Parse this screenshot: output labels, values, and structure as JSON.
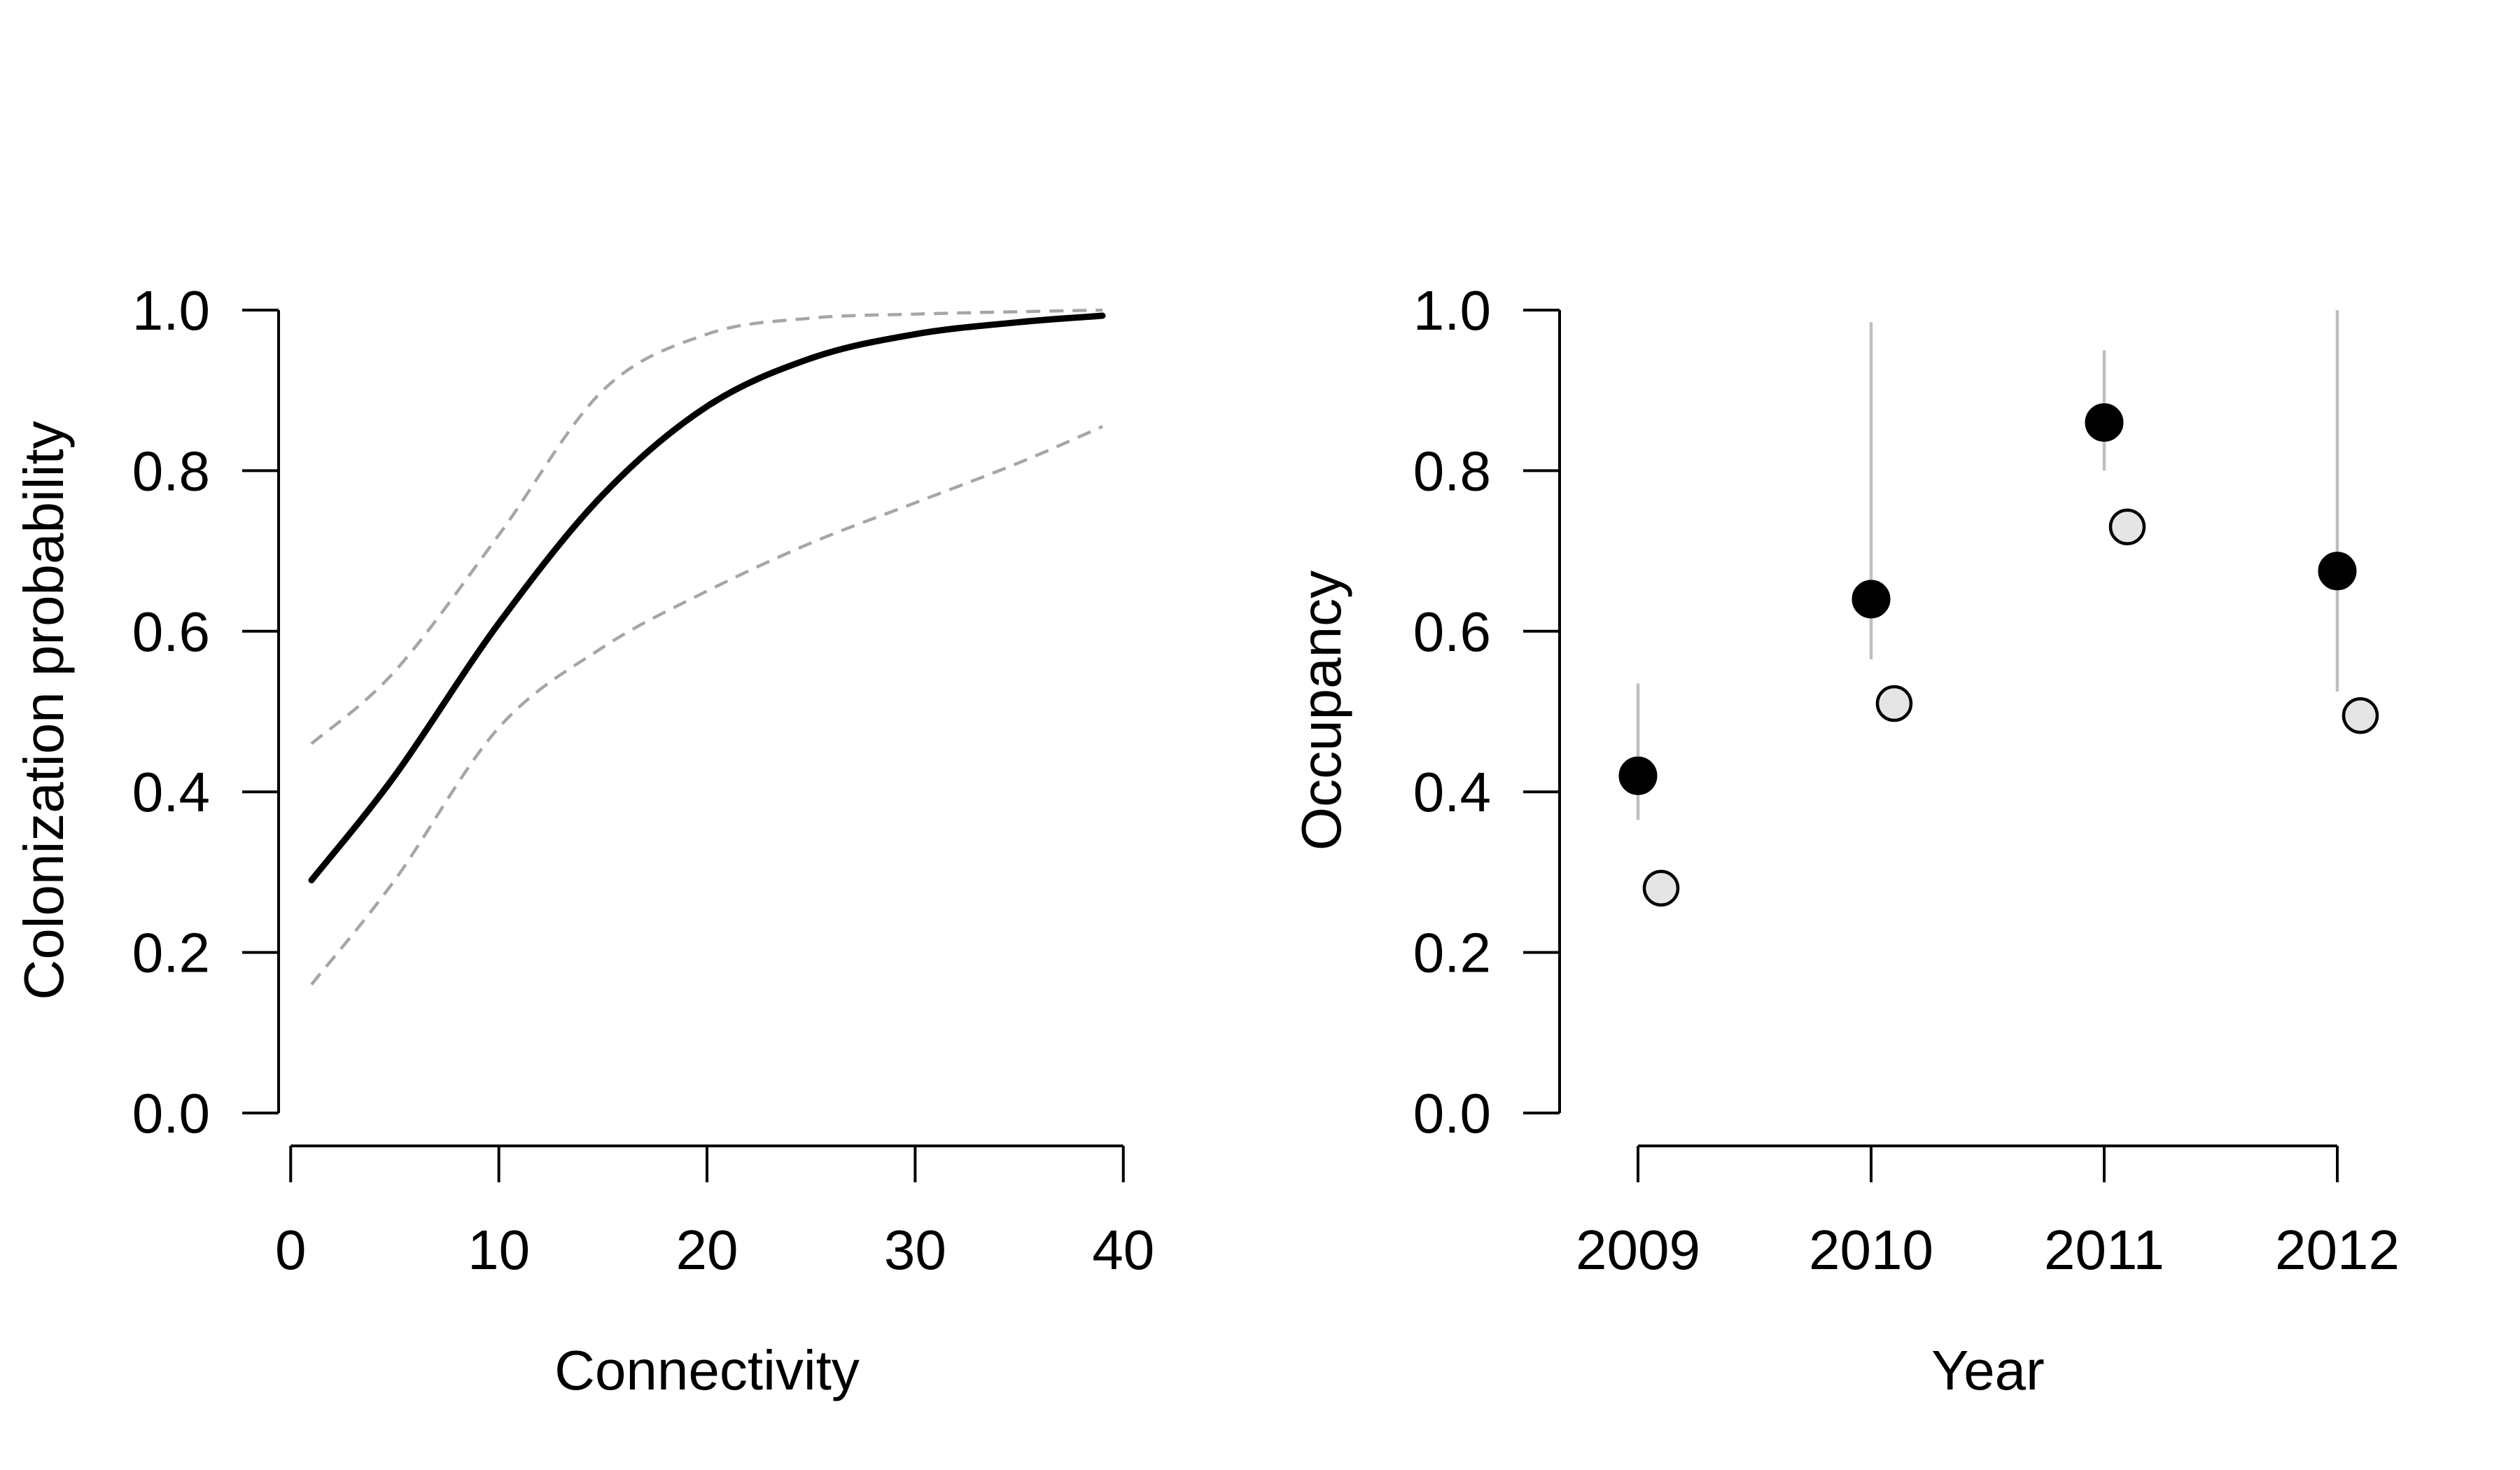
{
  "colors": {
    "curve": "#000000",
    "ci": "#a6a6a6",
    "observed_fill": "#000000",
    "naive_fill": "#e5e5e5",
    "error_bar": "#bfbfbf",
    "axis": "#000000"
  },
  "chart_data": [
    {
      "type": "line",
      "xlabel": "Connectivity",
      "ylabel": "Colonization probability",
      "xlim": [
        1,
        39
      ],
      "ylim": [
        0,
        1
      ],
      "x_ticks": [
        "0",
        "10",
        "20",
        "30",
        "40"
      ],
      "y_ticks": [
        "0.0",
        "0.2",
        "0.4",
        "0.6",
        "0.8",
        "1.0"
      ],
      "grid": false,
      "series": [
        {
          "role": "estimate",
          "style": "solid",
          "x": [
            1,
            5,
            10,
            15,
            20,
            25,
            30,
            35,
            39
          ],
          "y": [
            0.29,
            0.42,
            0.61,
            0.77,
            0.88,
            0.94,
            0.97,
            0.985,
            0.993
          ]
        },
        {
          "role": "upper",
          "style": "dashed",
          "x": [
            1,
            5,
            10,
            15,
            20,
            25,
            30,
            35,
            39
          ],
          "y": [
            0.46,
            0.55,
            0.72,
            0.9,
            0.97,
            0.99,
            0.995,
            0.998,
            1.0
          ]
        },
        {
          "role": "lower",
          "style": "dashed",
          "x": [
            1,
            5,
            10,
            15,
            20,
            25,
            30,
            35,
            39
          ],
          "y": [
            0.16,
            0.29,
            0.48,
            0.58,
            0.65,
            0.71,
            0.76,
            0.81,
            0.855
          ]
        }
      ]
    },
    {
      "type": "scatter",
      "xlabel": "Year",
      "ylabel": "Occupancy",
      "categories": [
        "2009",
        "2010",
        "2011",
        "2012"
      ],
      "ylim": [
        0,
        1
      ],
      "y_ticks": [
        "0.0",
        "0.2",
        "0.4",
        "0.6",
        "0.8",
        "1.0"
      ],
      "grid": false,
      "series": [
        {
          "role": "estimate",
          "marker": "filled-black",
          "values": [
            0.42,
            0.64,
            0.86,
            0.675
          ],
          "lower": [
            0.365,
            0.565,
            0.8,
            0.525
          ],
          "upper": [
            0.535,
            0.985,
            0.95,
            1.0
          ]
        },
        {
          "role": "naive",
          "marker": "open-grey",
          "values": [
            0.28,
            0.51,
            0.73,
            0.495
          ]
        }
      ]
    }
  ]
}
